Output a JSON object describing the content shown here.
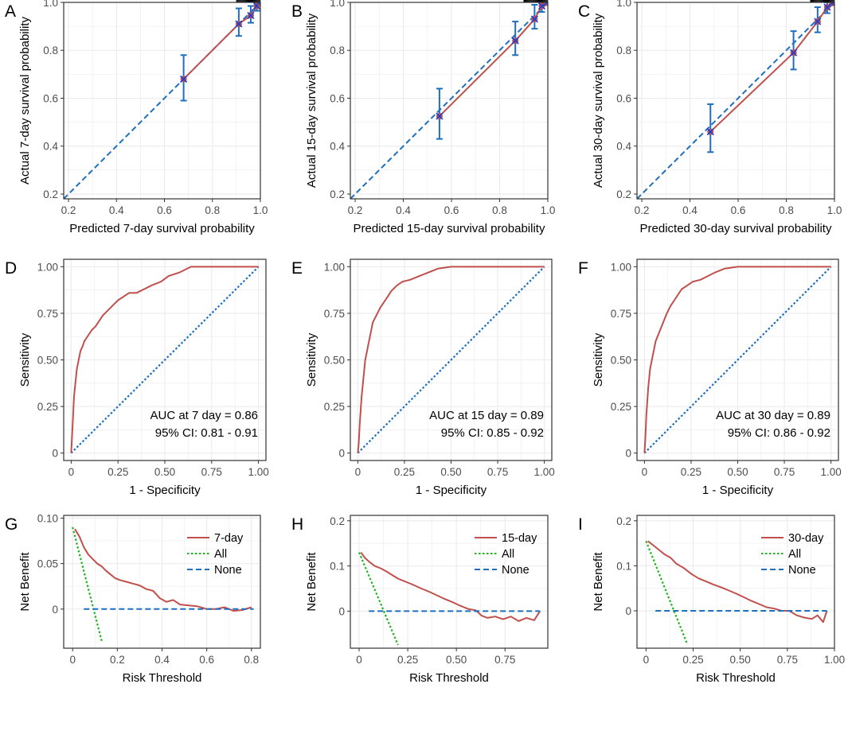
{
  "colors": {
    "model": "#c0504d",
    "ideal": "#1f6fbf",
    "marker": "#1f6fbf",
    "all": "#22b422",
    "none": "#1f6fbf",
    "grid": "#ebebeb",
    "axis": "#333333"
  },
  "chart_data": [
    {
      "panel": "A",
      "type": "line",
      "xlabel": "Predicted 7-day survival probability",
      "ylabel": "Actual 7-day survival probability",
      "xlim": [
        0.18,
        1.0
      ],
      "ylim": [
        0.18,
        1.0
      ],
      "xticks": [
        0.2,
        0.4,
        0.6,
        0.8,
        1.0
      ],
      "yticks": [
        0.2,
        0.4,
        0.6,
        0.8,
        1.0
      ],
      "xtick_labels": [
        "0.2",
        "0.4",
        "0.6",
        "0.8",
        "1.0"
      ],
      "ytick_labels": [
        "0.2",
        "0.4",
        "0.6",
        "0.8",
        "1.0"
      ],
      "series": [
        {
          "name": "Ideal",
          "style": "dashed",
          "x": [
            0.18,
            1.0
          ],
          "y": [
            0.18,
            1.0
          ]
        },
        {
          "name": "Calibration",
          "style": "solid",
          "x": [
            0.68,
            0.91,
            0.96,
            0.985,
            0.995
          ],
          "y": [
            0.68,
            0.91,
            0.945,
            0.985,
            0.998
          ]
        }
      ],
      "points": [
        {
          "x": 0.68,
          "y": 0.68,
          "lo": 0.59,
          "hi": 0.78
        },
        {
          "x": 0.91,
          "y": 0.91,
          "lo": 0.86,
          "hi": 0.975
        },
        {
          "x": 0.96,
          "y": 0.945,
          "lo": 0.915,
          "hi": 0.985
        },
        {
          "x": 0.985,
          "y": 0.985,
          "lo": 0.965,
          "hi": 1.0
        },
        {
          "x": 0.995,
          "y": 0.998,
          "lo": 0.99,
          "hi": 1.0
        }
      ]
    },
    {
      "panel": "B",
      "type": "line",
      "xlabel": "Predicted 15-day survival probability",
      "ylabel": "Actual 15-day survival probability",
      "xlim": [
        0.18,
        1.0
      ],
      "ylim": [
        0.18,
        1.0
      ],
      "xticks": [
        0.2,
        0.4,
        0.6,
        0.8,
        1.0
      ],
      "yticks": [
        0.2,
        0.4,
        0.6,
        0.8,
        1.0
      ],
      "xtick_labels": [
        "0.2",
        "0.4",
        "0.6",
        "0.8",
        "1.0"
      ],
      "ytick_labels": [
        "0.2",
        "0.4",
        "0.6",
        "0.8",
        "1.0"
      ],
      "series": [
        {
          "name": "Ideal",
          "style": "dashed",
          "x": [
            0.18,
            1.0
          ],
          "y": [
            0.18,
            1.0
          ]
        },
        {
          "name": "Calibration",
          "style": "solid",
          "x": [
            0.55,
            0.865,
            0.945,
            0.975,
            0.995
          ],
          "y": [
            0.525,
            0.84,
            0.93,
            0.985,
            0.998
          ]
        }
      ],
      "points": [
        {
          "x": 0.55,
          "y": 0.525,
          "lo": 0.43,
          "hi": 0.64
        },
        {
          "x": 0.865,
          "y": 0.84,
          "lo": 0.78,
          "hi": 0.92
        },
        {
          "x": 0.945,
          "y": 0.93,
          "lo": 0.89,
          "hi": 0.99
        },
        {
          "x": 0.975,
          "y": 0.985,
          "lo": 0.96,
          "hi": 1.0
        },
        {
          "x": 0.995,
          "y": 0.998,
          "lo": 0.99,
          "hi": 1.0
        }
      ]
    },
    {
      "panel": "C",
      "type": "line",
      "xlabel": "Predicted 30-day survival probability",
      "ylabel": "Actual 30-day survival probability",
      "xlim": [
        0.18,
        1.0
      ],
      "ylim": [
        0.18,
        1.0
      ],
      "xticks": [
        0.2,
        0.4,
        0.6,
        0.8,
        1.0
      ],
      "yticks": [
        0.2,
        0.4,
        0.6,
        0.8,
        1.0
      ],
      "xtick_labels": [
        "0.2",
        "0.4",
        "0.6",
        "0.8",
        "1.0"
      ],
      "ytick_labels": [
        "0.2",
        "0.4",
        "0.6",
        "0.8",
        "1.0"
      ],
      "series": [
        {
          "name": "Ideal",
          "style": "dashed",
          "x": [
            0.18,
            1.0
          ],
          "y": [
            0.18,
            1.0
          ]
        },
        {
          "name": "Calibration",
          "style": "solid",
          "x": [
            0.485,
            0.83,
            0.93,
            0.97,
            0.99
          ],
          "y": [
            0.46,
            0.79,
            0.92,
            0.98,
            0.997
          ]
        }
      ],
      "points": [
        {
          "x": 0.485,
          "y": 0.46,
          "lo": 0.375,
          "hi": 0.575
        },
        {
          "x": 0.83,
          "y": 0.79,
          "lo": 0.72,
          "hi": 0.88
        },
        {
          "x": 0.93,
          "y": 0.92,
          "lo": 0.875,
          "hi": 0.98
        },
        {
          "x": 0.97,
          "y": 0.98,
          "lo": 0.955,
          "hi": 1.0
        },
        {
          "x": 0.99,
          "y": 0.997,
          "lo": 0.99,
          "hi": 1.0
        }
      ]
    },
    {
      "panel": "D",
      "type": "line",
      "xlabel": "1 - Specificity",
      "ylabel": "Sensitivity",
      "xlim": [
        -0.04,
        1.04
      ],
      "ylim": [
        -0.04,
        1.04
      ],
      "xticks": [
        0,
        0.25,
        0.5,
        0.75,
        1.0
      ],
      "yticks": [
        0,
        0.25,
        0.5,
        0.75,
        1.0
      ],
      "xtick_labels": [
        "0",
        "0.25",
        "0.50",
        "0.75",
        "1.00"
      ],
      "ytick_labels": [
        "0",
        "0.25",
        "0.50",
        "0.75",
        "1.00"
      ],
      "annotation": [
        "AUC at 7 day = 0.86",
        "95% CI: 0.81 - 0.91"
      ],
      "series": [
        {
          "name": "Reference",
          "style": "dotted",
          "x": [
            0,
            1
          ],
          "y": [
            0,
            1
          ]
        },
        {
          "name": "ROC",
          "style": "solid",
          "x": [
            0,
            0.005,
            0.01,
            0.015,
            0.02,
            0.03,
            0.04,
            0.05,
            0.06,
            0.07,
            0.09,
            0.11,
            0.13,
            0.15,
            0.17,
            0.2,
            0.23,
            0.25,
            0.28,
            0.31,
            0.35,
            0.39,
            0.43,
            0.48,
            0.52,
            0.58,
            0.64,
            0.7,
            0.8,
            0.9,
            1.0
          ],
          "y": [
            0,
            0.1,
            0.2,
            0.3,
            0.35,
            0.45,
            0.5,
            0.55,
            0.57,
            0.6,
            0.63,
            0.66,
            0.68,
            0.71,
            0.74,
            0.77,
            0.8,
            0.82,
            0.84,
            0.86,
            0.86,
            0.88,
            0.9,
            0.92,
            0.95,
            0.97,
            1.0,
            1.0,
            1.0,
            1.0,
            1.0
          ]
        }
      ]
    },
    {
      "panel": "E",
      "type": "line",
      "xlabel": "1 - Specificity",
      "ylabel": "Sensitivity",
      "xlim": [
        -0.04,
        1.04
      ],
      "ylim": [
        -0.04,
        1.04
      ],
      "xticks": [
        0,
        0.25,
        0.5,
        0.75,
        1.0
      ],
      "yticks": [
        0,
        0.25,
        0.5,
        0.75,
        1.0
      ],
      "xtick_labels": [
        "0",
        "0.25",
        "0.50",
        "0.75",
        "1.00"
      ],
      "ytick_labels": [
        "0",
        "0.25",
        "0.50",
        "0.75",
        "1.00"
      ],
      "annotation": [
        "AUC at 15 day = 0.89",
        "95% CI: 0.85 - 0.92"
      ],
      "series": [
        {
          "name": "Reference",
          "style": "dotted",
          "x": [
            0,
            1
          ],
          "y": [
            0,
            1
          ]
        },
        {
          "name": "ROC",
          "style": "solid",
          "x": [
            0,
            0.005,
            0.01,
            0.02,
            0.03,
            0.04,
            0.05,
            0.06,
            0.07,
            0.08,
            0.1,
            0.12,
            0.14,
            0.16,
            0.18,
            0.21,
            0.24,
            0.28,
            0.33,
            0.38,
            0.43,
            0.5,
            0.6,
            0.8,
            1.0
          ],
          "y": [
            0,
            0.05,
            0.15,
            0.3,
            0.4,
            0.5,
            0.55,
            0.6,
            0.65,
            0.7,
            0.74,
            0.78,
            0.81,
            0.84,
            0.87,
            0.9,
            0.92,
            0.93,
            0.95,
            0.97,
            0.99,
            1.0,
            1.0,
            1.0,
            1.0
          ]
        }
      ]
    },
    {
      "panel": "F",
      "type": "line",
      "xlabel": "1 - Specificity",
      "ylabel": "Sensitivity",
      "xlim": [
        -0.04,
        1.04
      ],
      "ylim": [
        -0.04,
        1.04
      ],
      "xticks": [
        0,
        0.25,
        0.5,
        0.75,
        1.0
      ],
      "yticks": [
        0,
        0.25,
        0.5,
        0.75,
        1.0
      ],
      "xtick_labels": [
        "0",
        "0.25",
        "0.50",
        "0.75",
        "1.00"
      ],
      "ytick_labels": [
        "0",
        "0.25",
        "0.50",
        "0.75",
        "1.00"
      ],
      "annotation": [
        "AUC at 30 day = 0.89",
        "95% CI: 0.86 - 0.92"
      ],
      "series": [
        {
          "name": "Reference",
          "style": "dotted",
          "x": [
            0,
            1
          ],
          "y": [
            0,
            1
          ]
        },
        {
          "name": "ROC",
          "style": "solid",
          "x": [
            0,
            0.005,
            0.01,
            0.02,
            0.03,
            0.04,
            0.05,
            0.06,
            0.08,
            0.1,
            0.12,
            0.14,
            0.16,
            0.18,
            0.2,
            0.23,
            0.26,
            0.3,
            0.34,
            0.38,
            0.43,
            0.5,
            0.6,
            0.8,
            1.0
          ],
          "y": [
            0,
            0.08,
            0.2,
            0.35,
            0.45,
            0.5,
            0.55,
            0.6,
            0.65,
            0.7,
            0.75,
            0.79,
            0.82,
            0.85,
            0.88,
            0.9,
            0.92,
            0.93,
            0.95,
            0.97,
            0.99,
            1.0,
            1.0,
            1.0,
            1.0
          ]
        }
      ]
    },
    {
      "panel": "G",
      "type": "line",
      "xlabel": "Risk Threshold",
      "ylabel": "Net Benefit",
      "xlim": [
        -0.04,
        0.84
      ],
      "ylim": [
        -0.043,
        0.103
      ],
      "xticks": [
        0,
        0.2,
        0.4,
        0.6,
        0.8
      ],
      "yticks": [
        0,
        0.05,
        0.1
      ],
      "xtick_labels": [
        "0",
        "0.2",
        "0.4",
        "0.6",
        "0.8"
      ],
      "ytick_labels": [
        "0",
        "0.05",
        "0.10"
      ],
      "legend": [
        "7-day",
        "All",
        "None"
      ],
      "series": [
        {
          "name": "7-day",
          "style": "solid",
          "x": [
            0.01,
            0.03,
            0.05,
            0.07,
            0.09,
            0.11,
            0.13,
            0.15,
            0.17,
            0.19,
            0.21,
            0.24,
            0.27,
            0.3,
            0.33,
            0.36,
            0.39,
            0.42,
            0.45,
            0.48,
            0.52,
            0.56,
            0.6,
            0.64,
            0.68,
            0.72,
            0.76,
            0.8
          ],
          "y": [
            0.088,
            0.08,
            0.068,
            0.06,
            0.055,
            0.05,
            0.047,
            0.042,
            0.038,
            0.034,
            0.032,
            0.03,
            0.028,
            0.026,
            0.022,
            0.02,
            0.012,
            0.008,
            0.01,
            0.005,
            0.004,
            0.003,
            0.0,
            0.0,
            0.002,
            -0.002,
            -0.001,
            0.002
          ]
        },
        {
          "name": "All",
          "style": "dotted",
          "x": [
            0.0,
            0.13
          ],
          "y": [
            0.09,
            -0.035
          ]
        },
        {
          "name": "None",
          "style": "dashed",
          "x": [
            0.05,
            0.81
          ],
          "y": [
            0.0,
            0.0
          ]
        }
      ]
    },
    {
      "panel": "H",
      "type": "line",
      "xlabel": "Risk Threshold",
      "ylabel": "Net Benefit",
      "xlim": [
        -0.045,
        0.97
      ],
      "ylim": [
        -0.082,
        0.212
      ],
      "xticks": [
        0,
        0.25,
        0.5,
        0.75
      ],
      "yticks": [
        0,
        0.1,
        0.2
      ],
      "xtick_labels": [
        "0",
        "0.25",
        "0.50",
        "0.75"
      ],
      "ytick_labels": [
        "0",
        "0.1",
        "0.2"
      ],
      "legend": [
        "15-day",
        "All",
        "None"
      ],
      "series": [
        {
          "name": "15-day",
          "style": "solid",
          "x": [
            0.01,
            0.03,
            0.05,
            0.08,
            0.11,
            0.14,
            0.17,
            0.2,
            0.24,
            0.28,
            0.32,
            0.36,
            0.4,
            0.44,
            0.48,
            0.52,
            0.56,
            0.6,
            0.63,
            0.66,
            0.7,
            0.74,
            0.78,
            0.82,
            0.86,
            0.9,
            0.93
          ],
          "y": [
            0.13,
            0.118,
            0.11,
            0.1,
            0.095,
            0.088,
            0.08,
            0.072,
            0.065,
            0.058,
            0.05,
            0.043,
            0.035,
            0.027,
            0.02,
            0.012,
            0.005,
            0.002,
            -0.01,
            -0.015,
            -0.012,
            -0.018,
            -0.012,
            -0.022,
            -0.015,
            -0.02,
            0.0
          ]
        },
        {
          "name": "All",
          "style": "dotted",
          "x": [
            0.0,
            0.2
          ],
          "y": [
            0.13,
            -0.075
          ]
        },
        {
          "name": "None",
          "style": "dashed",
          "x": [
            0.05,
            0.93
          ],
          "y": [
            0.0,
            0.0
          ]
        }
      ]
    },
    {
      "panel": "I",
      "type": "line",
      "xlabel": "Risk Threshold",
      "ylabel": "Net Benefit",
      "xlim": [
        -0.048,
        1.0
      ],
      "ylim": [
        -0.083,
        0.212
      ],
      "xticks": [
        0,
        0.25,
        0.5,
        0.75,
        1.0
      ],
      "yticks": [
        0,
        0.1,
        0.2
      ],
      "xtick_labels": [
        "0",
        "0.25",
        "0.50",
        "0.75",
        "1.00"
      ],
      "ytick_labels": [
        "0",
        "0.1",
        "0.2"
      ],
      "legend": [
        "30-day",
        "All",
        "None"
      ],
      "series": [
        {
          "name": "30-day",
          "style": "solid",
          "x": [
            0.01,
            0.04,
            0.07,
            0.1,
            0.13,
            0.16,
            0.2,
            0.24,
            0.28,
            0.32,
            0.36,
            0.4,
            0.44,
            0.48,
            0.52,
            0.56,
            0.6,
            0.64,
            0.68,
            0.72,
            0.76,
            0.8,
            0.84,
            0.88,
            0.91,
            0.94,
            0.96
          ],
          "y": [
            0.155,
            0.145,
            0.135,
            0.125,
            0.118,
            0.105,
            0.095,
            0.082,
            0.072,
            0.065,
            0.058,
            0.052,
            0.045,
            0.038,
            0.03,
            0.022,
            0.015,
            0.008,
            0.005,
            0.0,
            0.0,
            -0.01,
            -0.015,
            -0.018,
            -0.01,
            -0.025,
            0.0
          ]
        },
        {
          "name": "All",
          "style": "dotted",
          "x": [
            0.0,
            0.22
          ],
          "y": [
            0.155,
            -0.075
          ]
        },
        {
          "name": "None",
          "style": "dashed",
          "x": [
            0.05,
            0.96
          ],
          "y": [
            0.0,
            0.0
          ]
        }
      ]
    }
  ]
}
